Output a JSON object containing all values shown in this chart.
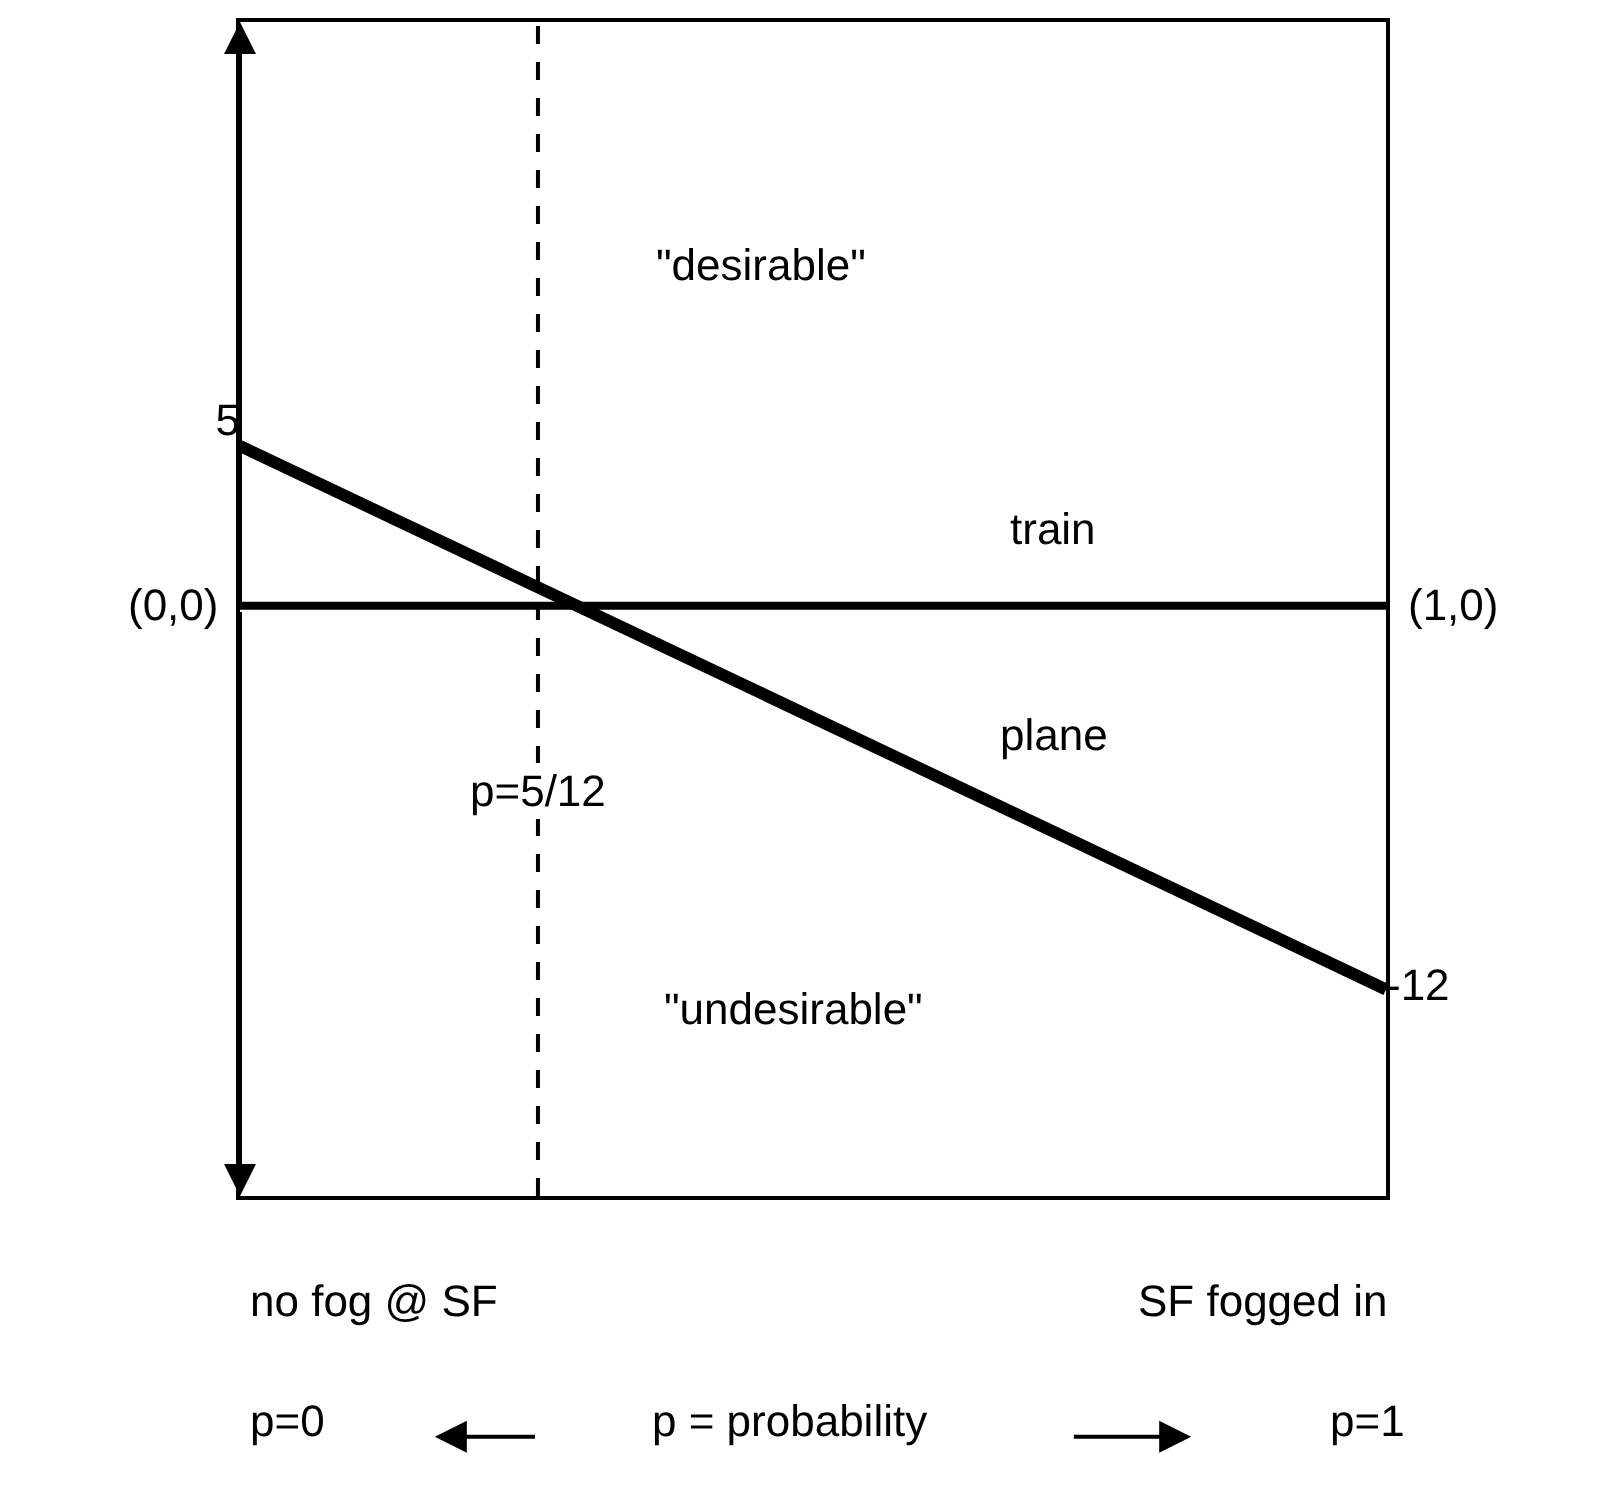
{
  "chart_data": {
    "type": "line",
    "categories": [
      null,
      null
    ],
    "series": [
      {
        "name": "train",
        "color": "#000000",
        "values": [
          0,
          0
        ]
      },
      {
        "name": "plane",
        "color": "#000000",
        "values": [
          5,
          -12
        ],
        "value_labels": [
          "5",
          "-12"
        ]
      }
    ],
    "annotations": [
      "\"desirable\"",
      "\"undesirable\"",
      "(0,0)",
      "(1,0)",
      "p=5/12",
      "no fog @ SF",
      "SF fogged in",
      "p=0",
      "p = probability",
      "p=1"
    ],
    "tick_labels": false,
    "marker": "none",
    "line_style": "solid",
    "grid": false,
    "legend": false
  }
}
